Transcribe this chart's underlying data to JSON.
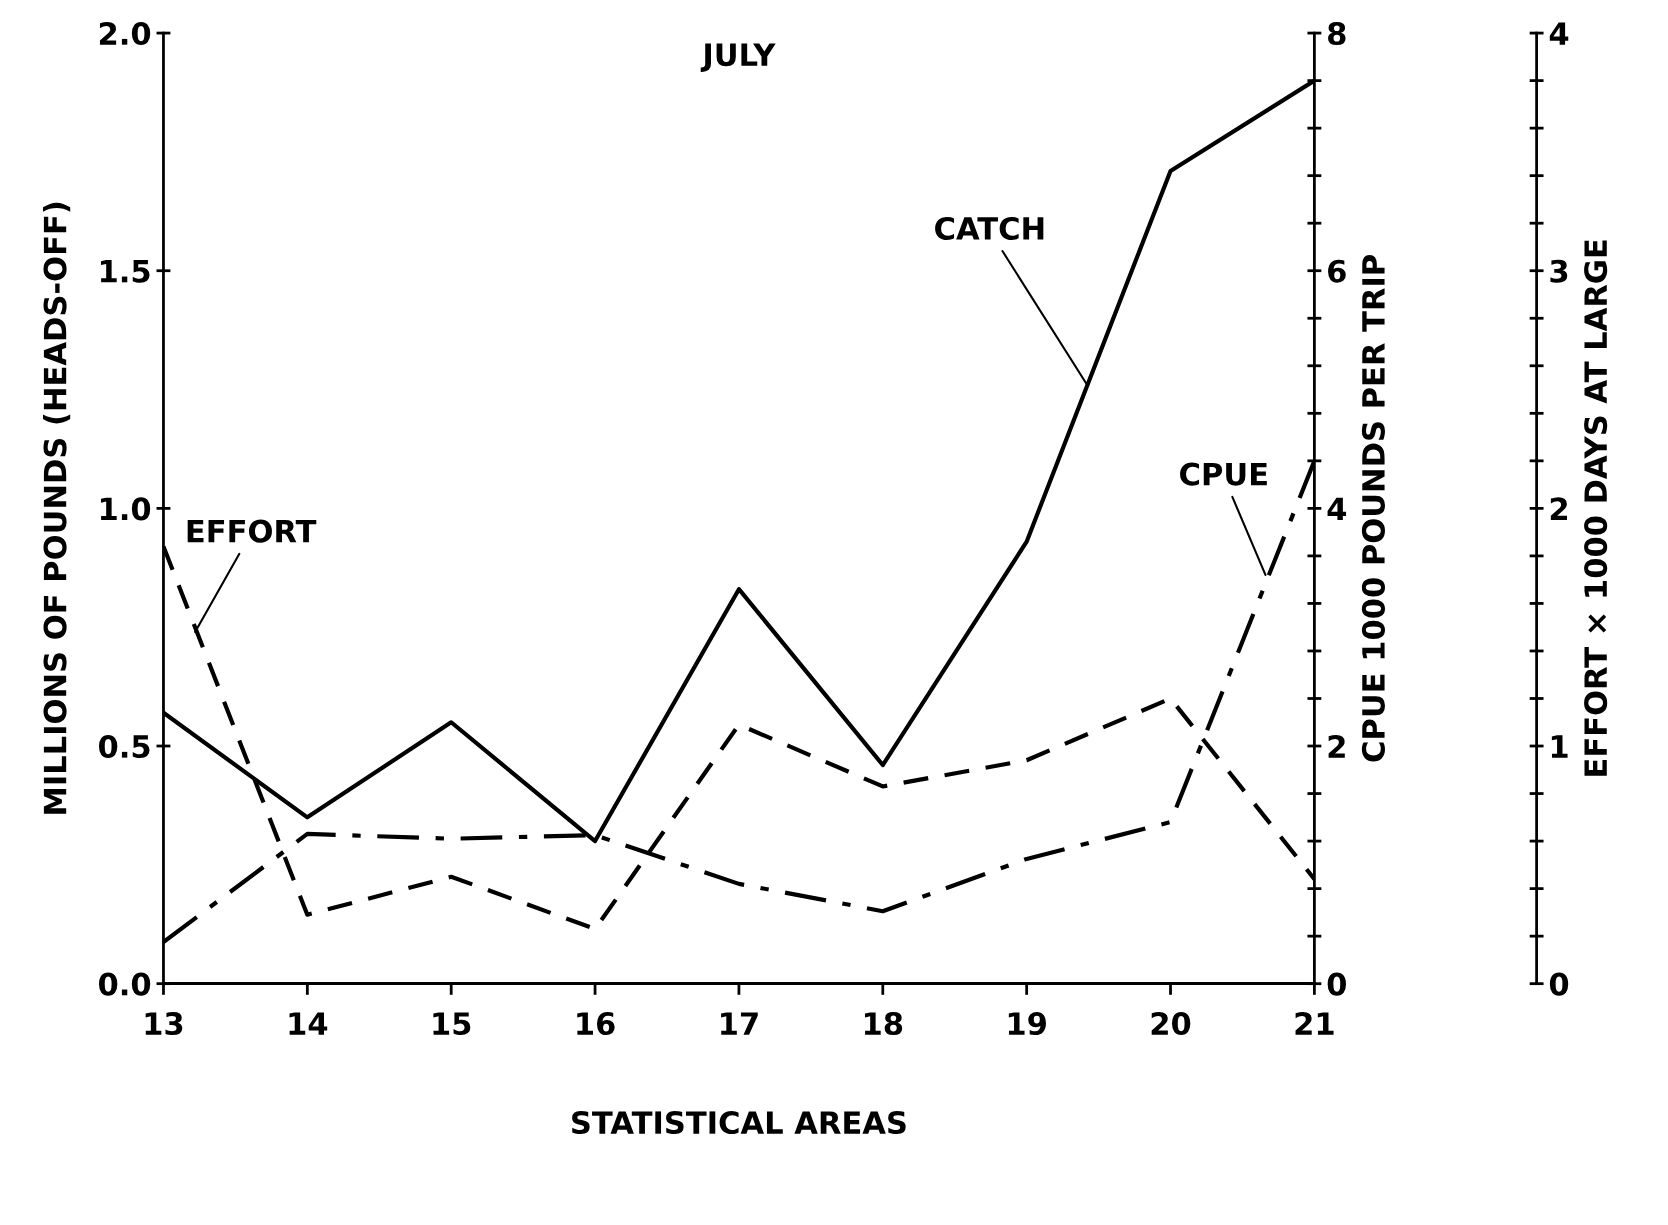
{
  "chart_data": {
    "type": "line",
    "title": "JULY",
    "xlabel": "STATISTICAL AREAS",
    "ylabel": "MILLIONS OF POUNDS (HEADS-OFF)",
    "y2label": "CPUE 1000 POUNDS PER TRIP",
    "y3label": "EFFORT × 1000 DAYS AT LARGE",
    "x": [
      13,
      14,
      15,
      16,
      17,
      18,
      19,
      20,
      21
    ],
    "xlim": [
      13,
      21
    ],
    "xticks": [
      13,
      14,
      15,
      16,
      17,
      18,
      19,
      20,
      21
    ],
    "ylim": [
      0,
      2
    ],
    "yticks": [
      {
        "value": 0,
        "label": "0.0"
      },
      {
        "value": 0.5,
        "label": "0.5"
      },
      {
        "value": 1,
        "label": "1.0"
      },
      {
        "value": 1.5,
        "label": "1.5"
      },
      {
        "value": 2,
        "label": "2.0"
      }
    ],
    "y2lim": [
      0,
      8
    ],
    "y2ticks": [
      0,
      {
        "value": 0.4,
        "label": null
      },
      {
        "value": 0.8,
        "label": null
      },
      {
        "value": 1.2,
        "label": null
      },
      {
        "value": 1.6,
        "label": null
      },
      2,
      {
        "value": 2.4,
        "label": null
      },
      {
        "value": 2.8,
        "label": null
      },
      {
        "value": 3.2,
        "label": null
      },
      {
        "value": 3.6,
        "label": null
      },
      4,
      {
        "value": 4.4,
        "label": null
      },
      {
        "value": 4.8,
        "label": null
      },
      {
        "value": 5.2,
        "label": null
      },
      {
        "value": 5.6,
        "label": null
      },
      6,
      {
        "value": 6.4,
        "label": null
      },
      {
        "value": 6.8,
        "label": null
      },
      {
        "value": 7.2,
        "label": null
      },
      {
        "value": 7.6,
        "label": null
      },
      8
    ],
    "y3lim": [
      0,
      4
    ],
    "y3ticks": [
      0,
      {
        "value": 0.2,
        "label": null
      },
      {
        "value": 0.4,
        "label": null
      },
      {
        "value": 0.6,
        "label": null
      },
      {
        "value": 0.8,
        "label": null
      },
      1,
      {
        "value": 1.2,
        "label": null
      },
      {
        "value": 1.4,
        "label": null
      },
      {
        "value": 1.6,
        "label": null
      },
      {
        "value": 1.8,
        "label": null
      },
      2,
      {
        "value": 2.2,
        "label": null
      },
      {
        "value": 2.4,
        "label": null
      },
      {
        "value": 2.6,
        "label": null
      },
      {
        "value": 2.8,
        "label": null
      },
      3,
      {
        "value": 3.2,
        "label": null
      },
      {
        "value": 3.4,
        "label": null
      },
      {
        "value": 3.6,
        "label": null
      },
      {
        "value": 3.8,
        "label": null
      },
      4
    ],
    "series": [
      {
        "color": "#000000",
        "line_style": "solid",
        "values": [
          0.57,
          0.35,
          0.55,
          0.3,
          0.83,
          0.46,
          0.93,
          1.71,
          1.9
        ]
      },
      {
        "color": "#000000",
        "line_style": "dashdot",
        "axis": "y2",
        "values": [
          0.35,
          1.26,
          1.22,
          1.25,
          0.84,
          0.61,
          1.05,
          1.36,
          4.4
        ]
      },
      {
        "color": "#000000",
        "line_style": "dashed",
        "axis": "y3",
        "values": [
          1.84,
          0.29,
          0.45,
          0.23,
          1.09,
          0.83,
          0.94,
          1.2,
          0.44
        ]
      }
    ],
    "annotations": [
      {
        "text": "CATCH",
        "x": 19.42,
        "y": 1.26
      },
      {
        "text": "CPUE",
        "x": 20.66,
        "y": 0.86
      },
      {
        "text": "EFFORT",
        "x": 13.22,
        "y": 0.74
      }
    ],
    "grid": false,
    "marker": "none"
  }
}
